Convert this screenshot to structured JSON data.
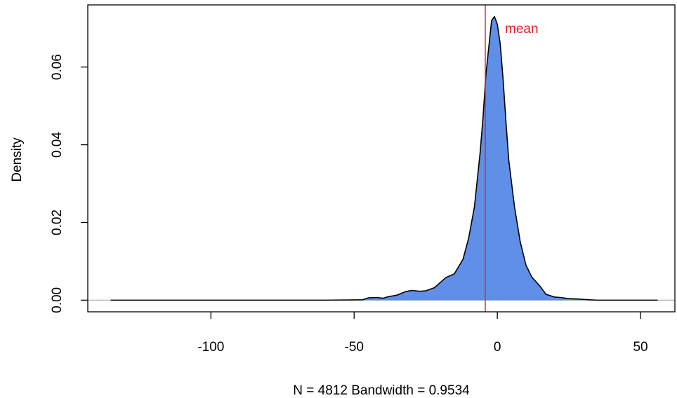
{
  "chart_data": {
    "type": "area",
    "title": "",
    "xlabel": "N = 4812   Bandwidth = 0.9534",
    "ylabel": "Density",
    "xlim": [
      -143,
      62
    ],
    "ylim": [
      -0.003,
      0.076
    ],
    "x_ticks": [
      -100,
      -50,
      0,
      50
    ],
    "x_tick_labels": [
      "-100",
      "-50",
      "0",
      "50"
    ],
    "y_ticks": [
      0.0,
      0.02,
      0.04,
      0.06
    ],
    "y_tick_labels": [
      "0.00",
      "0.02",
      "0.04",
      "0.06"
    ],
    "grid": false,
    "series": [
      {
        "x": [
          -135,
          -60,
          -47,
          -45,
          -42,
          -40,
          -38,
          -35,
          -32,
          -30,
          -27,
          -25,
          -22,
          -20,
          -18,
          -15,
          -12,
          -10,
          -8,
          -6,
          -5,
          -4,
          -3,
          -2,
          -1,
          0,
          1,
          2,
          3,
          4,
          5,
          6,
          8,
          10,
          12,
          15,
          17,
          20,
          22,
          25,
          28,
          30,
          32,
          35,
          40,
          45,
          50,
          56
        ],
        "y": [
          0.0,
          0.0,
          0.0001,
          0.0006,
          0.0007,
          0.0005,
          0.0009,
          0.0013,
          0.0022,
          0.0025,
          0.0023,
          0.0024,
          0.0032,
          0.0045,
          0.0058,
          0.0068,
          0.0105,
          0.016,
          0.024,
          0.038,
          0.047,
          0.058,
          0.065,
          0.072,
          0.073,
          0.071,
          0.066,
          0.057,
          0.046,
          0.036,
          0.03,
          0.024,
          0.015,
          0.009,
          0.006,
          0.0035,
          0.0015,
          0.0008,
          0.0007,
          0.0004,
          0.0003,
          0.0002,
          0.0001,
          0.0,
          0.0,
          0.0,
          0.0,
          0.0
        ]
      }
    ],
    "fill_color": "#5f8fe6",
    "line_color": "#000000",
    "mean_line": {
      "x": -4.2,
      "color": "#e3202b",
      "label": "mean"
    },
    "baseline_color": "#b0b0b0"
  }
}
